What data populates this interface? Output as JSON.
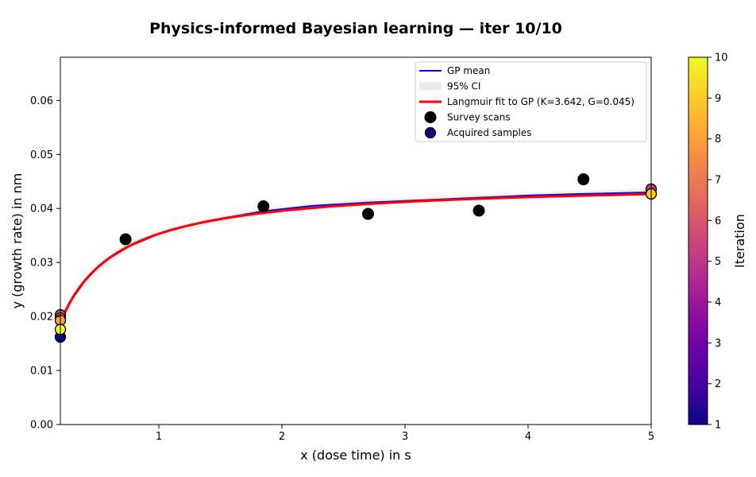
{
  "chart_data": {
    "type": "scatter",
    "title": "Physics-informed Bayesian learning — iter 10/10",
    "xlabel": "x (dose time) in s",
    "ylabel": "y (growth rate) in nm",
    "xlim": [
      0.2,
      5.0
    ],
    "ylim": [
      0.0,
      0.068
    ],
    "xticks": [
      1,
      2,
      3,
      4,
      5
    ],
    "yticks": [
      0.0,
      0.01,
      0.02,
      0.03,
      0.04,
      0.05,
      0.06
    ],
    "ytick_labels": [
      "0.00",
      "0.01",
      "0.02",
      "0.03",
      "0.04",
      "0.05",
      "0.06"
    ],
    "grid": false,
    "legend_position": "top-right",
    "series": [
      {
        "name": "GP mean",
        "kind": "line",
        "color": "#0000ff",
        "x": [
          0.2,
          0.25,
          0.3,
          0.4,
          0.5,
          0.6,
          0.75,
          1.0,
          1.25,
          1.5,
          1.85,
          2.25,
          2.7,
          3.2,
          3.6,
          4.0,
          4.45,
          5.0
        ],
        "y": [
          0.0187,
          0.0212,
          0.0234,
          0.0266,
          0.029,
          0.0308,
          0.0329,
          0.0353,
          0.0369,
          0.0381,
          0.0395,
          0.0405,
          0.0411,
          0.0416,
          0.042,
          0.0424,
          0.0427,
          0.043
        ]
      },
      {
        "name": "95% CI",
        "kind": "band",
        "color": "#dddddd",
        "x": [
          0.2,
          0.3,
          0.5,
          0.75,
          1.0,
          1.5,
          2.0,
          2.7,
          3.6,
          4.45,
          5.0
        ],
        "lower": [
          0.0178,
          0.0226,
          0.0284,
          0.0323,
          0.0347,
          0.0375,
          0.0392,
          0.0405,
          0.0414,
          0.0421,
          0.0423
        ],
        "upper": [
          0.0196,
          0.0242,
          0.0296,
          0.0335,
          0.0359,
          0.0387,
          0.0404,
          0.0417,
          0.0426,
          0.0433,
          0.0437
        ]
      },
      {
        "name": "Langmuir fit to GP (K=3.642, G=0.045)",
        "kind": "line",
        "color": "#ff0000",
        "K": 3.642,
        "G": 0.045,
        "x_start": 0.2,
        "x_end": 5.0
      },
      {
        "name": "Survey scans",
        "kind": "scatter",
        "color": "#000000",
        "x": [
          0.73,
          1.85,
          2.7,
          3.6,
          4.45
        ],
        "y": [
          0.0343,
          0.0404,
          0.039,
          0.0396,
          0.0454
        ]
      },
      {
        "name": "Acquired samples",
        "kind": "scatter",
        "color": "#0d0887",
        "colorbar": "Iteration",
        "points": [
          {
            "x": 0.2,
            "y": 0.0162,
            "iteration": 1
          },
          {
            "x": 0.2,
            "y": 0.0203,
            "iteration": 6
          },
          {
            "x": 5.0,
            "y": 0.0436,
            "iteration": 5
          },
          {
            "x": 0.2,
            "y": 0.0197,
            "iteration": 7
          },
          {
            "x": 0.2,
            "y": 0.0193,
            "iteration": 8
          },
          {
            "x": 5.0,
            "y": 0.0427,
            "iteration": 9
          },
          {
            "x": 0.2,
            "y": 0.0176,
            "iteration": 10
          }
        ]
      }
    ],
    "colorbar": {
      "label": "Iteration",
      "min": 1,
      "max": 10,
      "ticks": [
        1,
        2,
        3,
        4,
        5,
        6,
        7,
        8,
        9,
        10
      ],
      "colormap": "plasma"
    }
  }
}
